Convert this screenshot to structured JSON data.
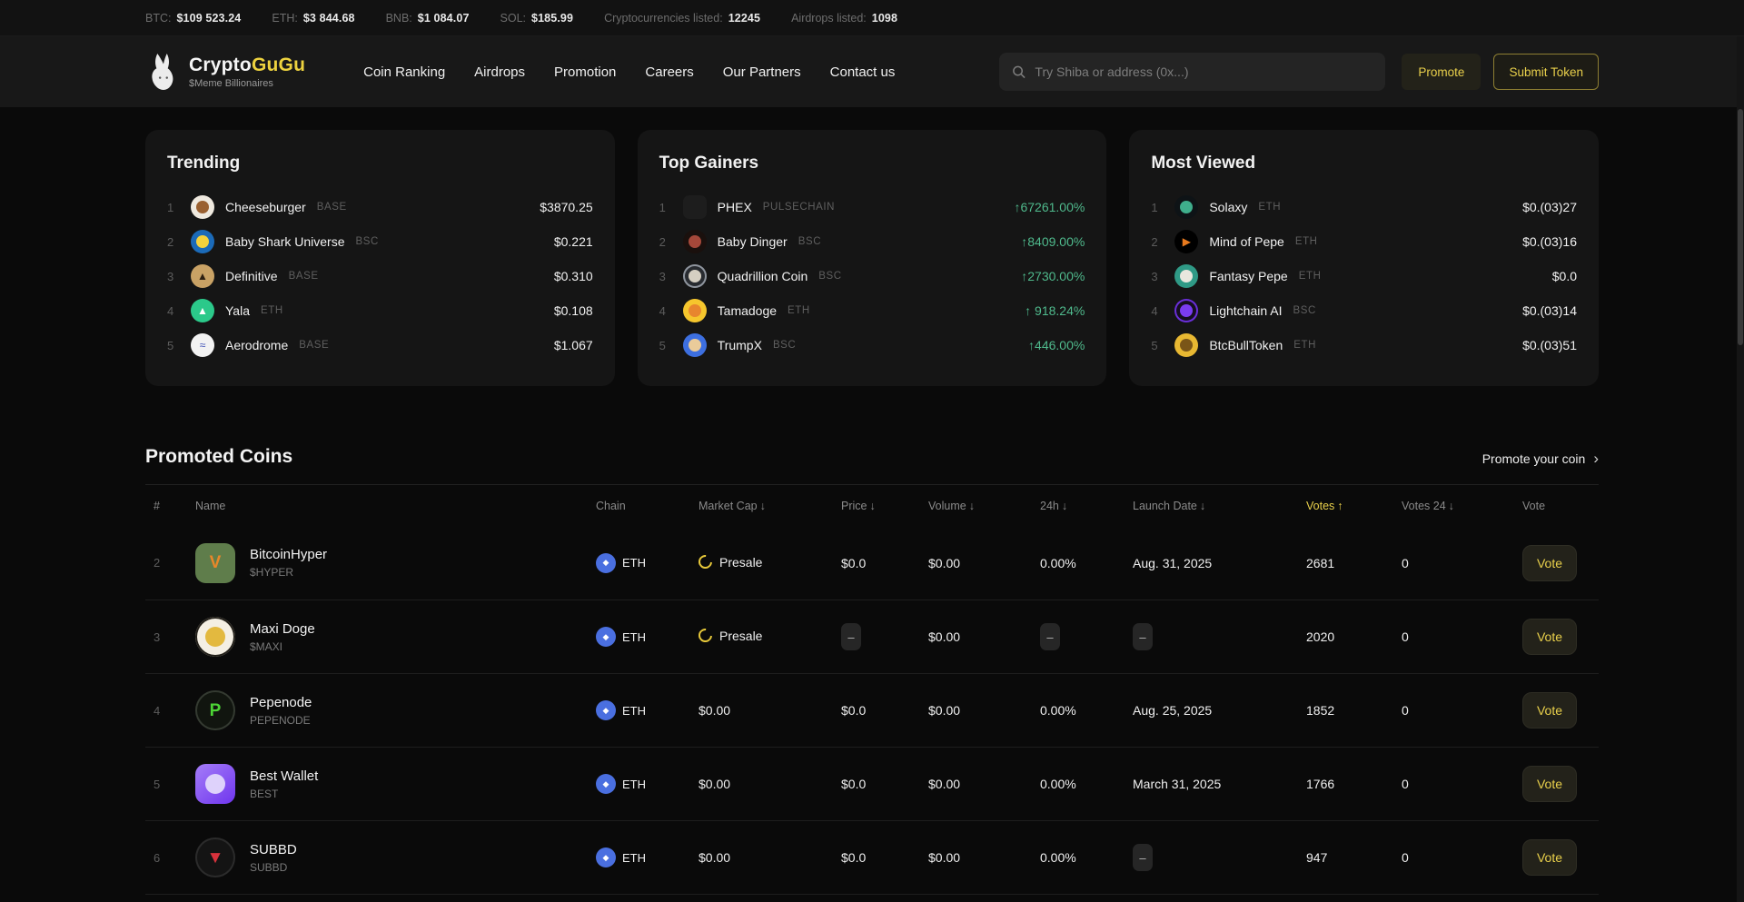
{
  "colors": {
    "accent_yellow": "#e9d04b",
    "gain_green": "#4fb98c",
    "chain_blue": "#4a6fe0"
  },
  "ticker": {
    "items": [
      {
        "label": "BTC:",
        "value": "$109 523.24"
      },
      {
        "label": "ETH:",
        "value": "$3 844.68"
      },
      {
        "label": "BNB:",
        "value": "$1 084.07"
      },
      {
        "label": "SOL:",
        "value": "$185.99"
      },
      {
        "label": "Cryptocurrencies listed:",
        "value": "12245"
      },
      {
        "label": "Airdrops listed:",
        "value": "1098"
      }
    ]
  },
  "header": {
    "brand": {
      "name_left": "Crypto",
      "name_right": "GuGu",
      "tagline": "$Meme Billionaires"
    },
    "nav": [
      "Coin Ranking",
      "Airdrops",
      "Promotion",
      "Careers",
      "Our Partners",
      "Contact us"
    ],
    "search_placeholder": "Try Shiba or address (0x...)",
    "promote_label": "Promote",
    "submit_label": "Submit Token"
  },
  "cards": [
    {
      "title": "Trending",
      "rows": [
        {
          "rank": "1",
          "name": "Cheeseburger",
          "chain": "BASE",
          "value": "$3870.25",
          "avatar": {
            "shape": "circle",
            "bg": "#efe9df",
            "inner": "#9a6030"
          }
        },
        {
          "rank": "2",
          "name": "Baby Shark Universe",
          "chain": "BSC",
          "value": "$0.221",
          "avatar": {
            "shape": "circle",
            "bg": "#1b6ab8",
            "inner": "#f5d23c"
          }
        },
        {
          "rank": "3",
          "name": "Definitive",
          "chain": "BASE",
          "value": "$0.310",
          "avatar": {
            "shape": "circle",
            "bg": "#c9a265",
            "glyph": "▲",
            "glyph_color": "#2e2012"
          }
        },
        {
          "rank": "4",
          "name": "Yala",
          "chain": "ETH",
          "value": "$0.108",
          "avatar": {
            "shape": "circle",
            "bg": "#2bc98a",
            "glyph": "▲",
            "glyph_color": "#ffffff"
          }
        },
        {
          "rank": "5",
          "name": "Aerodrome",
          "chain": "BASE",
          "value": "$1.067",
          "avatar": {
            "shape": "circle",
            "bg": "#f2f2f2",
            "glyph": "≈",
            "glyph_color": "#3a4db5"
          }
        }
      ]
    },
    {
      "title": "Top Gainers",
      "value_style": "gain",
      "rows": [
        {
          "rank": "1",
          "name": "PHEX",
          "chain": "PULSECHAIN",
          "value": "↑67261.00%",
          "avatar": {
            "shape": "square",
            "bg": "#1d1d1d"
          }
        },
        {
          "rank": "2",
          "name": "Baby Dinger",
          "chain": "BSC",
          "value": "↑8409.00%",
          "avatar": {
            "shape": "circle",
            "bg": "#1a100d",
            "inner": "#a5483a"
          }
        },
        {
          "rank": "3",
          "name": "Quadrillion Coin",
          "chain": "BSC",
          "value": "↑2730.00%",
          "avatar": {
            "shape": "circle",
            "bg": "#282b30",
            "ring": "#8f959e",
            "inner": "#d5cfc2"
          }
        },
        {
          "rank": "4",
          "name": "Tamadoge",
          "chain": "ETH",
          "value": "↑ 918.24%",
          "avatar": {
            "shape": "circle",
            "bg": "#f6c62d",
            "inner": "#e8862e"
          }
        },
        {
          "rank": "5",
          "name": "TrumpX",
          "chain": "BSC",
          "value": "↑446.00%",
          "avatar": {
            "shape": "circle",
            "bg": "#3d6fe0",
            "inner": "#eacb9a"
          }
        }
      ]
    },
    {
      "title": "Most Viewed",
      "rows": [
        {
          "rank": "1",
          "name": "Solaxy",
          "chain": "ETH",
          "value": "$0.(03)27",
          "avatar": {
            "shape": "circle",
            "bg": "#0e1316",
            "inner": "#3fae8c"
          }
        },
        {
          "rank": "2",
          "name": "Mind of Pepe",
          "chain": "ETH",
          "value": "$0.(03)16",
          "avatar": {
            "shape": "circle",
            "bg": "#000000",
            "glyph": "▶",
            "glyph_color": "#e87a1e"
          }
        },
        {
          "rank": "3",
          "name": "Fantasy Pepe",
          "chain": "ETH",
          "value": "$0.0",
          "avatar": {
            "shape": "circle",
            "bg": "#2f9a86",
            "inner": "#e9e7de"
          }
        },
        {
          "rank": "4",
          "name": "Lightchain AI",
          "chain": "BSC",
          "value": "$0.(03)14",
          "avatar": {
            "shape": "circle",
            "bg": "#150f1f",
            "ring": "#6a2fd8",
            "inner": "#7a3cf0"
          }
        },
        {
          "rank": "5",
          "name": "BtcBullToken",
          "chain": "ETH",
          "value": "$0.(03)51",
          "avatar": {
            "shape": "circle",
            "bg": "#e8b832",
            "inner": "#7a5518"
          }
        }
      ]
    }
  ],
  "promoted": {
    "title": "Promoted Coins",
    "link_label": "Promote your coin",
    "columns": [
      {
        "label": "#"
      },
      {
        "label": "Name"
      },
      {
        "label": "Chain"
      },
      {
        "label": "Market Cap",
        "sort": "↓"
      },
      {
        "label": "Price",
        "sort": "↓"
      },
      {
        "label": "Volume",
        "sort": "↓"
      },
      {
        "label": "24h",
        "sort": "↓"
      },
      {
        "label": "Launch Date",
        "sort": "↓"
      },
      {
        "label": "Votes",
        "sort": "↑",
        "active": true
      },
      {
        "label": "Votes 24",
        "sort": "↓"
      },
      {
        "label": "Vote"
      }
    ],
    "rows": [
      {
        "rank": "2",
        "name": "BitcoinHyper",
        "symbol": "$HYPER",
        "chain": "ETH",
        "market_cap": "Presale",
        "price": "$0.0",
        "volume": "$0.00",
        "change_24h": "0.00%",
        "launch_date": "Aug. 31, 2025",
        "votes": "2681",
        "votes_24": "0",
        "vote_label": "Vote",
        "avatar": {
          "shape": "square",
          "bg": "#5f7d4b",
          "glyph": "V",
          "glyph_color": "#e8872a"
        }
      },
      {
        "rank": "3",
        "name": "Maxi Doge",
        "symbol": "$MAXI",
        "chain": "ETH",
        "market_cap": "Presale",
        "price": "–",
        "volume": "$0.00",
        "change_24h": "–",
        "launch_date": "–",
        "votes": "2020",
        "votes_24": "0",
        "vote_label": "Vote",
        "avatar": {
          "shape": "circle",
          "bg": "#f4efe4",
          "ring": "#23201a",
          "inner": "#e3b93f"
        }
      },
      {
        "rank": "4",
        "name": "Pepenode",
        "symbol": "PEPENODE",
        "chain": "ETH",
        "market_cap": "$0.00",
        "price": "$0.0",
        "volume": "$0.00",
        "change_24h": "0.00%",
        "launch_date": "Aug. 25, 2025",
        "votes": "1852",
        "votes_24": "0",
        "vote_label": "Vote",
        "avatar": {
          "shape": "circle",
          "bg": "#11150f",
          "ring": "#343a31",
          "glyph": "P",
          "glyph_color": "#4cd435"
        }
      },
      {
        "rank": "5",
        "name": "Best Wallet",
        "symbol": "BEST",
        "chain": "ETH",
        "market_cap": "$0.00",
        "price": "$0.0",
        "volume": "$0.00",
        "change_24h": "0.00%",
        "launch_date": "March 31, 2025",
        "votes": "1766",
        "votes_24": "0",
        "vote_label": "Vote",
        "avatar": {
          "shape": "square",
          "bg": "linear-gradient(140deg,#a57df8,#6f35ee)",
          "inner": "#ded2fb"
        }
      },
      {
        "rank": "6",
        "name": "SUBBD",
        "symbol": "SUBBD",
        "chain": "ETH",
        "market_cap": "$0.00",
        "price": "$0.0",
        "volume": "$0.00",
        "change_24h": "0.00%",
        "launch_date": "–",
        "votes": "947",
        "votes_24": "0",
        "vote_label": "Vote",
        "avatar": {
          "shape": "circle",
          "bg": "#141414",
          "ring": "#2b2b2b",
          "glyph": "▼",
          "glyph_color": "#d8323c"
        }
      }
    ]
  }
}
